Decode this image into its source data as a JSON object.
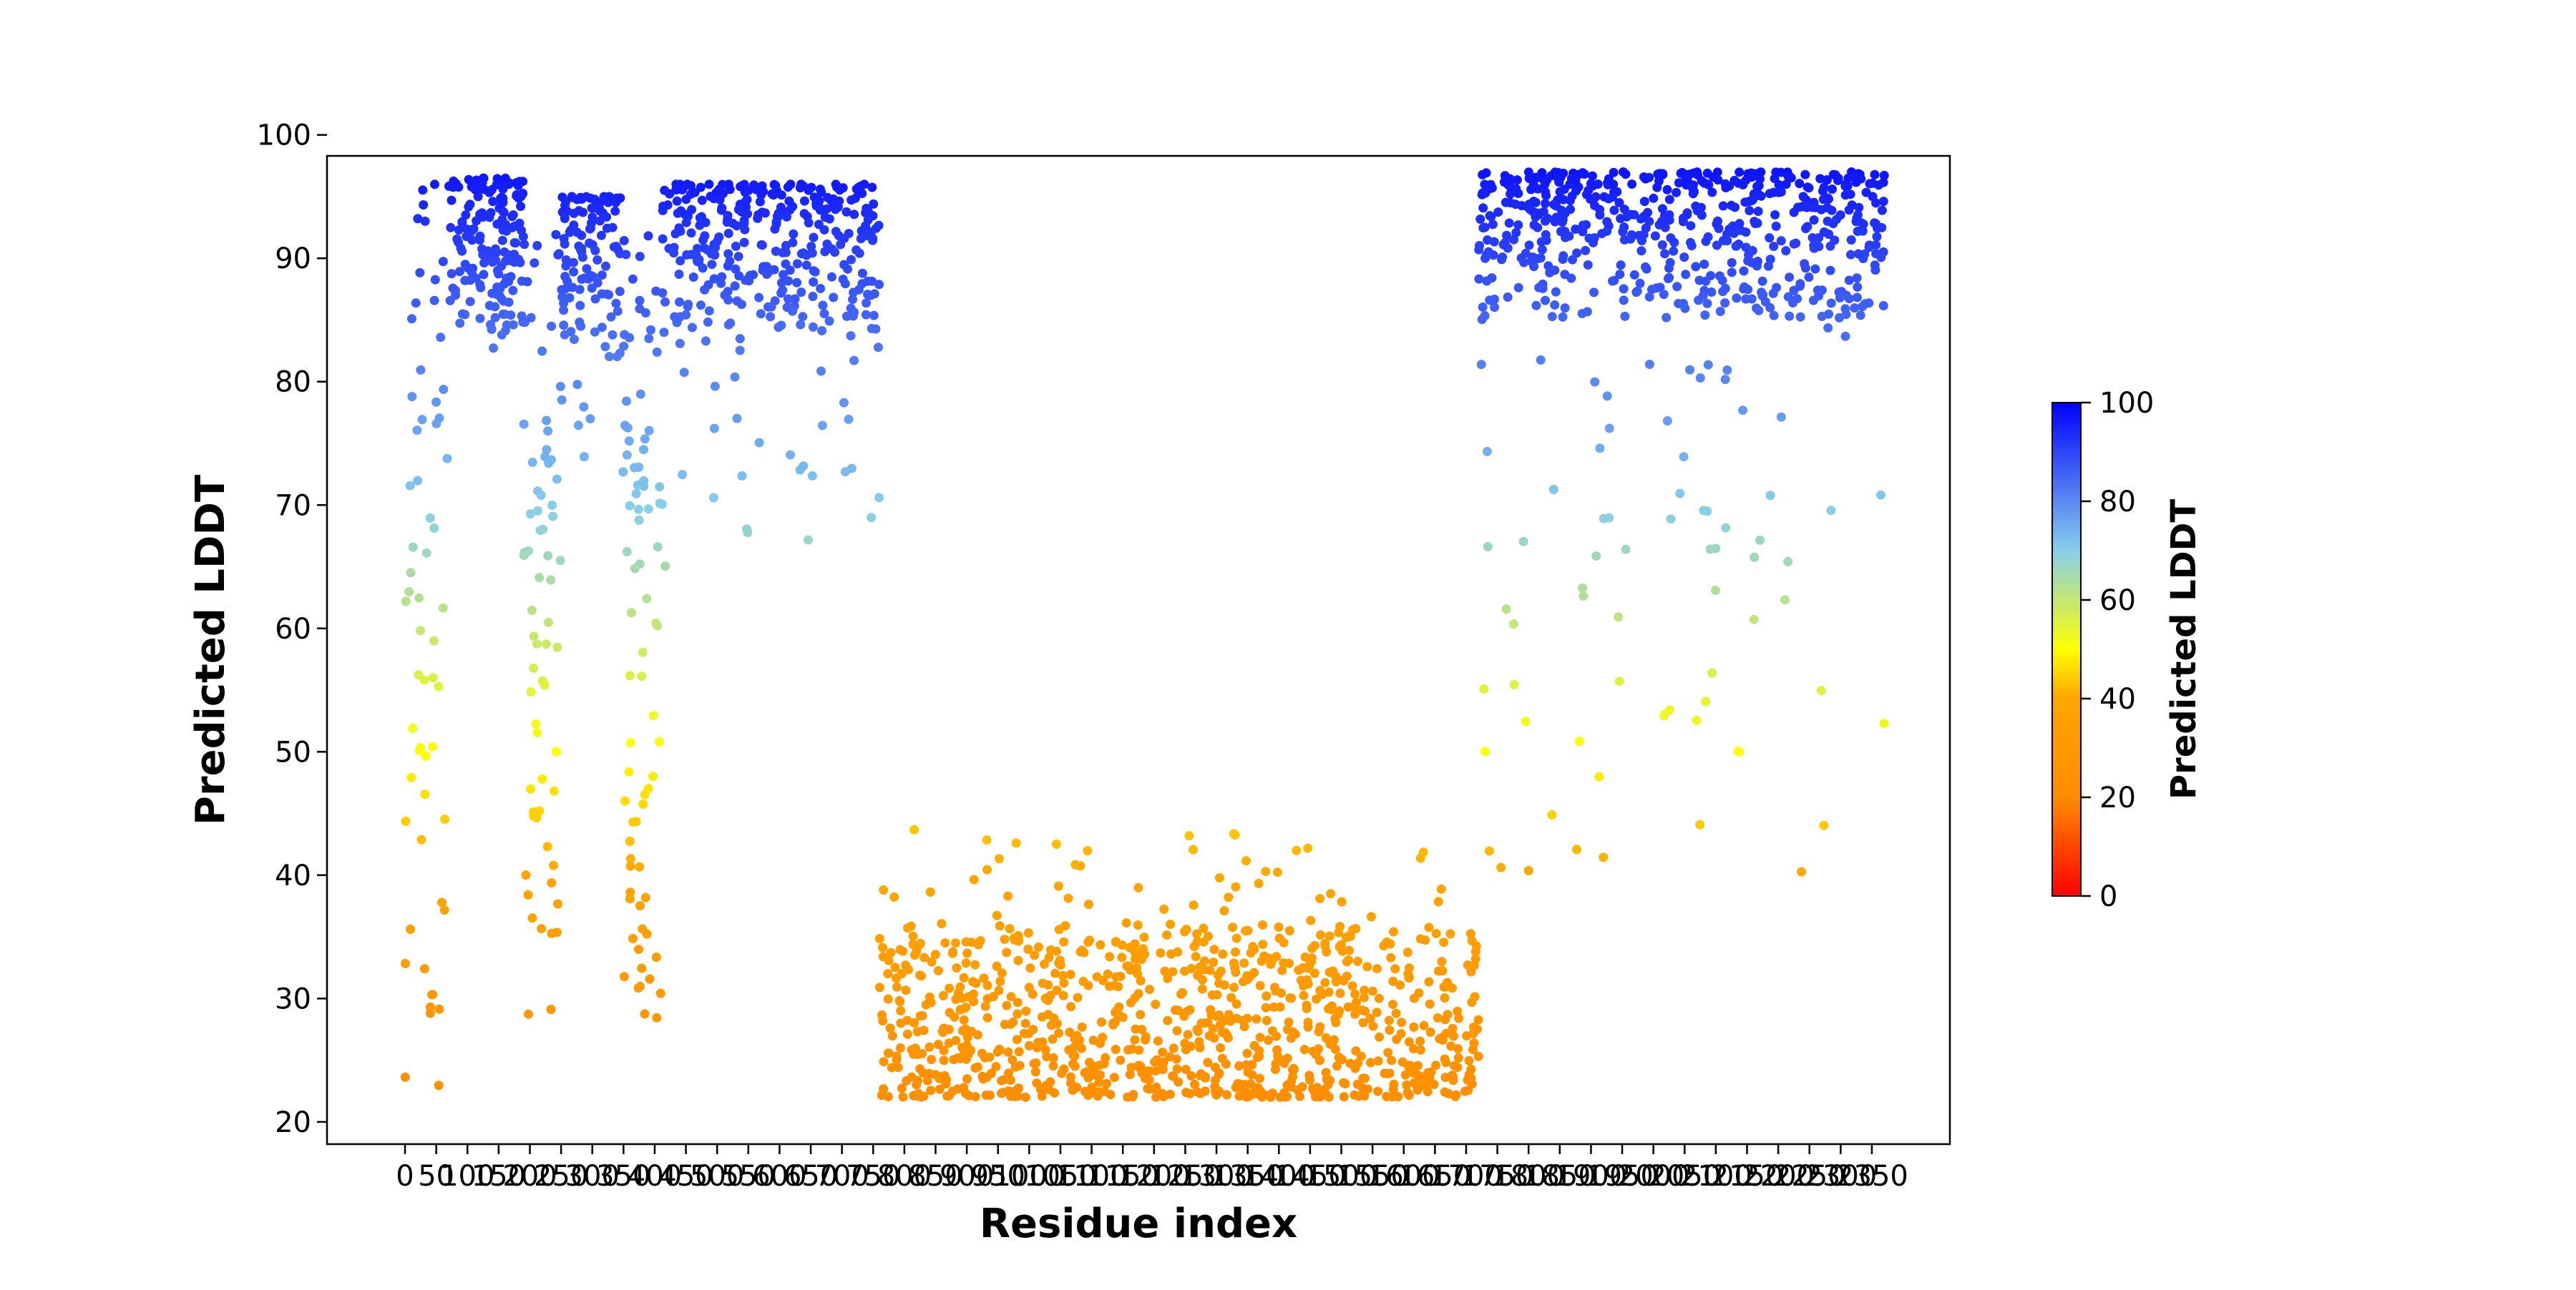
{
  "chart_data": {
    "type": "scatter",
    "title": "",
    "xlabel": "Residue index",
    "ylabel": "Predicted LDDT",
    "xlim": [
      -125,
      2475
    ],
    "ylim": [
      18.2,
      98.3
    ],
    "y_ticks": [
      20,
      30,
      40,
      50,
      60,
      70,
      80,
      90,
      100
    ],
    "x_ticks": [
      0,
      50,
      100,
      150,
      200,
      250,
      300,
      350,
      400,
      450,
      500,
      550,
      600,
      650,
      700,
      750,
      800,
      850,
      900,
      950,
      1000,
      1050,
      1100,
      1150,
      1200,
      1250,
      1300,
      1350,
      1400,
      1450,
      1500,
      1550,
      1600,
      1650,
      1700,
      1750,
      1800,
      1850,
      1900,
      1950,
      2000,
      2050,
      2100,
      2150,
      2200,
      2250,
      2300,
      2350
    ],
    "grid": false,
    "colorbar": {
      "label": "Predicted LDDT",
      "min": 0,
      "max": 100,
      "ticks": [
        0,
        20,
        40,
        60,
        80,
        100
      ],
      "colors": [
        "#ff0000",
        "#ffa500",
        "#ffff00",
        "#87ceeb",
        "#0000ff"
      ]
    },
    "segments": [
      {
        "x_start": 0,
        "x_end": 70,
        "y_min": 22,
        "y_max": 96,
        "pattern": "disordered",
        "count": 60
      },
      {
        "x_start": 70,
        "x_end": 190,
        "y_min": 82,
        "y_max": 96.5,
        "pattern": "ordered",
        "count": 160
      },
      {
        "x_start": 190,
        "x_end": 250,
        "y_min": 28,
        "y_max": 92,
        "pattern": "disordered",
        "count": 70
      },
      {
        "x_start": 250,
        "x_end": 345,
        "y_min": 73,
        "y_max": 95,
        "pattern": "ordered",
        "count": 120
      },
      {
        "x_start": 345,
        "x_end": 410,
        "y_min": 28,
        "y_max": 92,
        "pattern": "disordered",
        "count": 80
      },
      {
        "x_start": 410,
        "x_end": 760,
        "y_min": 64,
        "y_max": 96,
        "pattern": "ordered",
        "count": 360
      },
      {
        "x_start": 760,
        "x_end": 1720,
        "y_min": 21,
        "y_max": 45,
        "pattern": "low",
        "count": 950
      },
      {
        "x_start": 1720,
        "x_end": 2370,
        "y_min": 38,
        "y_max": 97,
        "pattern": "ordered",
        "count": 650
      }
    ]
  }
}
